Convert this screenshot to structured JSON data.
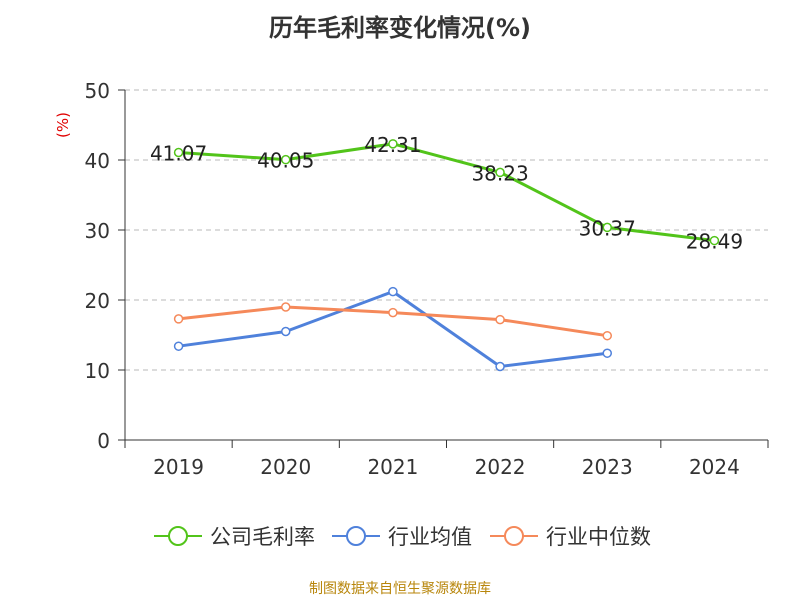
{
  "chart_data": {
    "type": "line",
    "title": "历年毛利率变化情况(%)",
    "ylabel": "(%)",
    "categories": [
      "2019",
      "2020",
      "2021",
      "2022",
      "2023",
      "2024"
    ],
    "ylim": [
      0,
      50
    ],
    "yticks": [
      "0",
      "10",
      "20",
      "30",
      "40",
      "50"
    ],
    "grid": true,
    "legend_position": "bottom",
    "series": [
      {
        "name": "公司毛利率",
        "color": "#52c41a",
        "values": [
          41.07,
          40.05,
          42.31,
          38.23,
          30.37,
          28.49
        ],
        "labels": [
          "41.07",
          "40.05",
          "42.31",
          "38.23",
          "30.37",
          "28.49"
        ]
      },
      {
        "name": "行业均值",
        "color": "#4f81db",
        "values": [
          13.4,
          15.5,
          21.2,
          10.5,
          12.4,
          null
        ]
      },
      {
        "name": "行业中位数",
        "color": "#f5895a",
        "values": [
          17.3,
          19.0,
          18.2,
          17.2,
          14.9,
          null
        ]
      }
    ]
  },
  "source": "制图数据来自恒生聚源数据库"
}
